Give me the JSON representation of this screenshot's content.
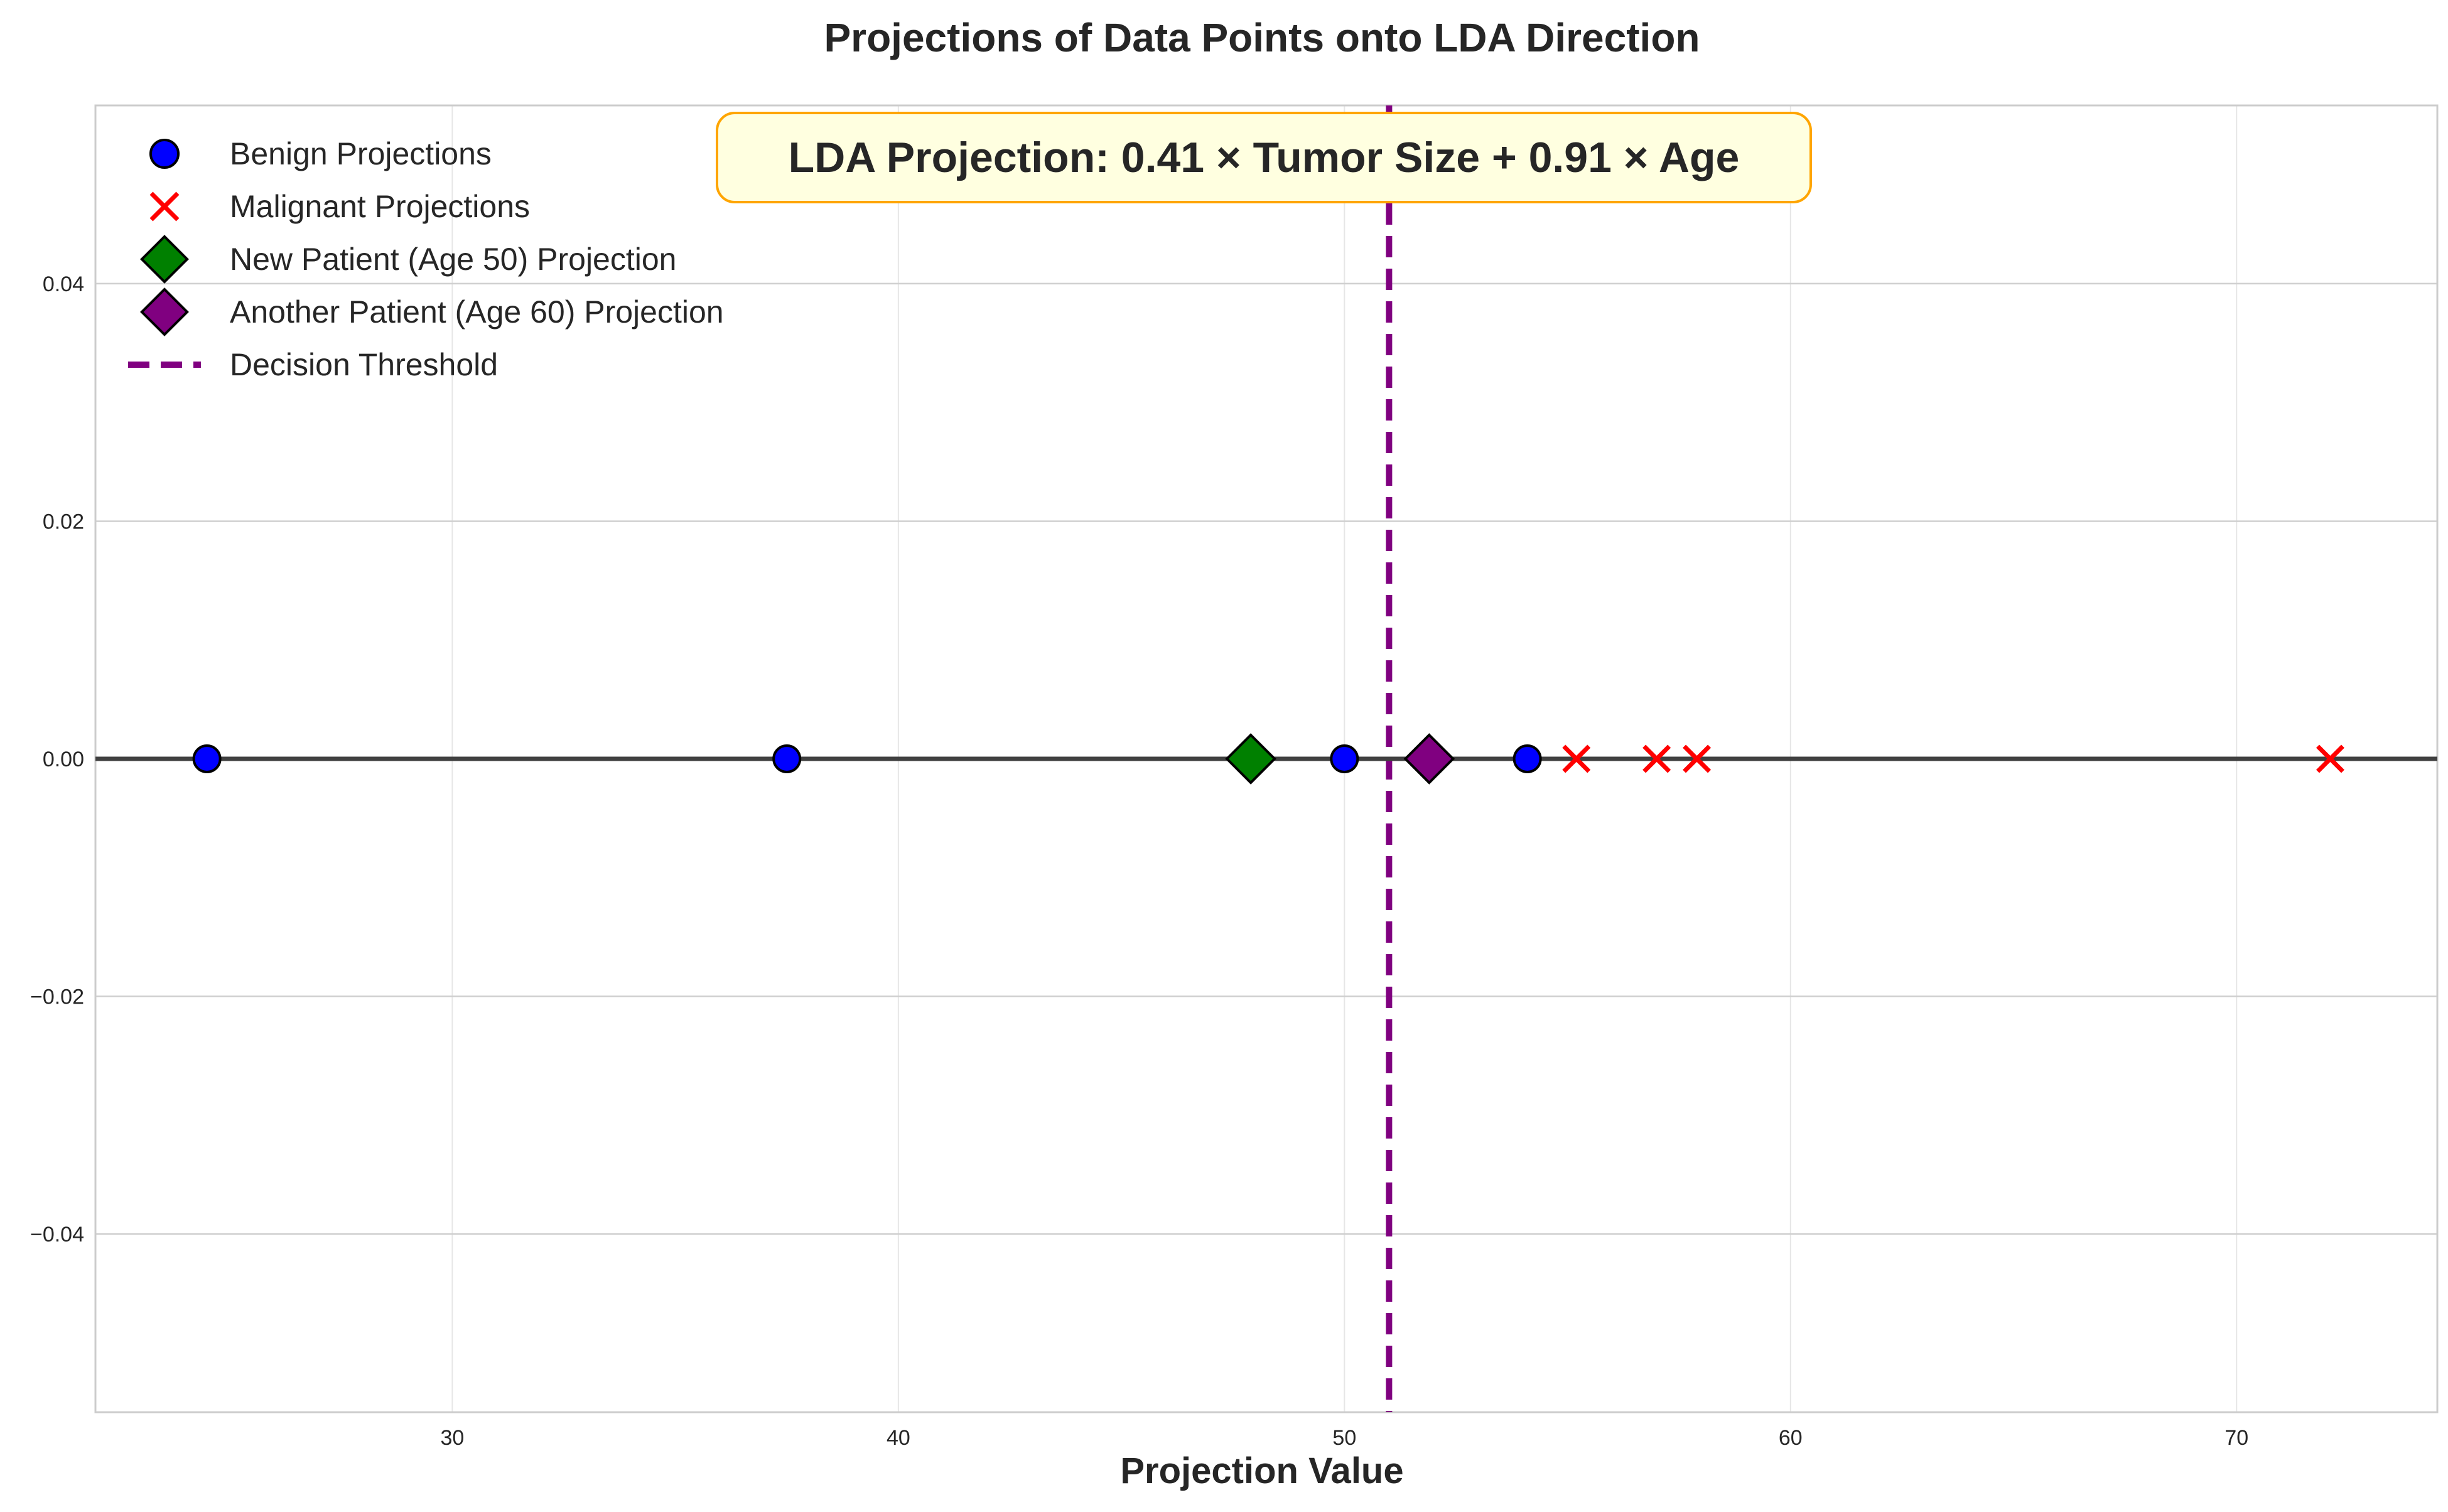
{
  "chart_data": {
    "type": "scatter",
    "title": "Projections of Data Points onto LDA Direction",
    "xlabel": "Projection Value",
    "ylabel": "",
    "xlim": [
      22,
      74.5
    ],
    "ylim": [
      -0.055,
      0.055
    ],
    "xticks": [
      30,
      40,
      50,
      60,
      70
    ],
    "xtick_labels": [
      "30",
      "40",
      "50",
      "60",
      "70"
    ],
    "yticks": [
      -0.04,
      -0.02,
      0.0,
      0.02,
      0.04
    ],
    "ytick_labels": [
      "−0.04",
      "−0.02",
      "0.00",
      "0.02",
      "0.04"
    ],
    "grid": true,
    "legend_position": "upper-left",
    "series": [
      {
        "name": "Benign Projections",
        "marker": "circle",
        "color": "#0000ff",
        "points": [
          [
            24.5,
            0
          ],
          [
            37.5,
            0
          ],
          [
            50.0,
            0
          ],
          [
            54.1,
            0
          ]
        ]
      },
      {
        "name": "Malignant Projections",
        "marker": "x",
        "color": "#ff0000",
        "points": [
          [
            55.2,
            0
          ],
          [
            57.0,
            0
          ],
          [
            57.9,
            0
          ],
          [
            72.1,
            0
          ]
        ]
      },
      {
        "name": "New Patient (Age 50) Projection",
        "marker": "diamond",
        "color": "#008000",
        "points": [
          [
            47.9,
            0
          ]
        ]
      },
      {
        "name": "Another Patient (Age 60) Projection",
        "marker": "diamond",
        "color": "#800080",
        "points": [
          [
            51.9,
            0
          ]
        ]
      }
    ],
    "lines": [
      {
        "name": "Decision Threshold",
        "orientation": "vertical",
        "x": 51.0,
        "color": "#800080",
        "style": "dashed"
      },
      {
        "name": "",
        "orientation": "horizontal",
        "y": 0,
        "color": "#404040",
        "style": "solid"
      }
    ],
    "annotation": {
      "text": "LDA Projection: 0.41 × Tumor Size + 0.91 × Age",
      "background": "#ffffe0",
      "border": "#ffa500"
    },
    "colors": {
      "axis_spine": "#cccccc",
      "grid": "#e6e6e6",
      "text": "#262626"
    }
  }
}
